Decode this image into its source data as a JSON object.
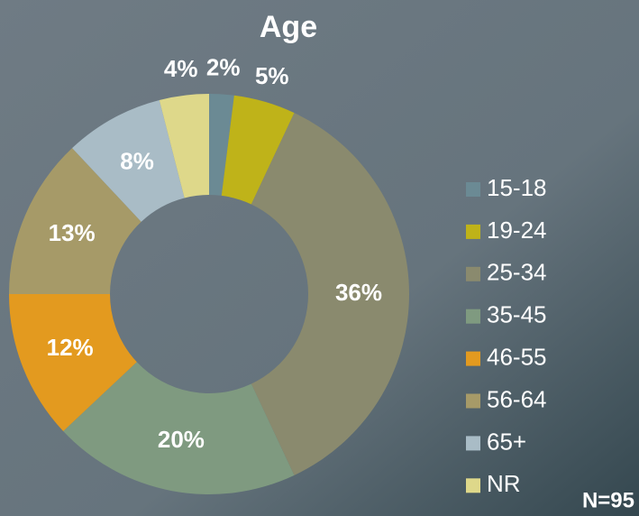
{
  "chart_data": {
    "type": "donut",
    "title": "Age",
    "categories": [
      "15-18",
      "19-24",
      "25-34",
      "35-45",
      "46-55",
      "56-64",
      "65+",
      "NR"
    ],
    "values": [
      2,
      5,
      36,
      20,
      12,
      13,
      8,
      4
    ],
    "value_labels": [
      "2%",
      "5%",
      "36%",
      "20%",
      "12%",
      "13%",
      "8%",
      "4%"
    ],
    "colors": [
      "#6b8a94",
      "#bfb319",
      "#8a8a6e",
      "#7f9a80",
      "#e39a1f",
      "#a69a68",
      "#a9bcc6",
      "#ded88a"
    ],
    "legend": "right",
    "annotation": "N=95"
  }
}
